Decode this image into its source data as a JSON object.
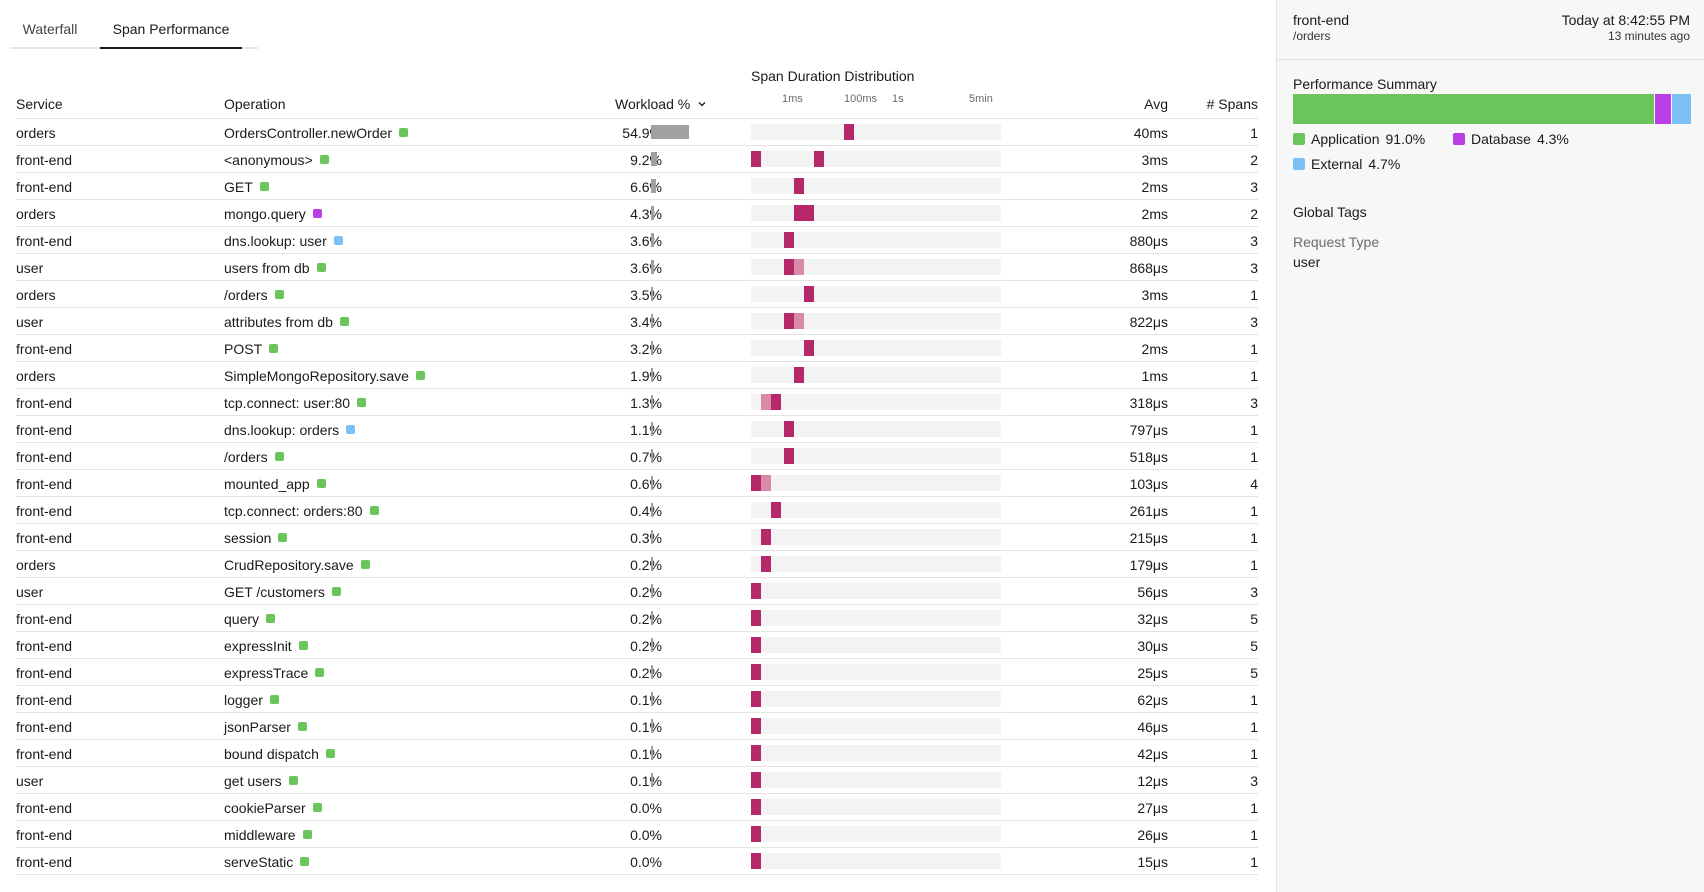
{
  "tabs": [
    {
      "label": "Waterfall",
      "active": false
    },
    {
      "label": "Span Performance",
      "active": true
    }
  ],
  "table": {
    "distribution_title": "Span Duration Distribution",
    "headers": {
      "service": "Service",
      "operation": "Operation",
      "workload": "Workload %",
      "avg": "Avg",
      "spans": "# Spans"
    },
    "sort_icon": "chevron-down-icon",
    "axis_ticks": [
      "1ms",
      "100ms",
      "1s",
      "5min"
    ],
    "rows": [
      {
        "service": "orders",
        "operation": "OrdersController.newOrder",
        "category": "application",
        "workload": "54.9%",
        "workload_value": 54.9,
        "avg": "40ms",
        "spans": "1",
        "dist": [
          [
            0.37,
            0.04,
            "dark"
          ]
        ]
      },
      {
        "service": "front-end",
        "operation": "<anonymous>",
        "category": "application",
        "workload": "9.2%",
        "workload_value": 9.2,
        "avg": "3ms",
        "spans": "2",
        "dist": [
          [
            0.0,
            0.04,
            "dark"
          ],
          [
            0.25,
            0.04,
            "dark"
          ]
        ]
      },
      {
        "service": "front-end",
        "operation": "GET",
        "category": "application",
        "workload": "6.6%",
        "workload_value": 6.6,
        "avg": "2ms",
        "spans": "3",
        "dist": [
          [
            0.17,
            0.04,
            "dark"
          ]
        ]
      },
      {
        "service": "orders",
        "operation": "mongo.query",
        "category": "database",
        "workload": "4.3%",
        "workload_value": 4.3,
        "avg": "2ms",
        "spans": "2",
        "dist": [
          [
            0.17,
            0.08,
            "dark"
          ]
        ]
      },
      {
        "service": "front-end",
        "operation": "dns.lookup: user",
        "category": "external",
        "workload": "3.6%",
        "workload_value": 3.6,
        "avg": "880μs",
        "spans": "3",
        "dist": [
          [
            0.13,
            0.04,
            "dark"
          ]
        ]
      },
      {
        "service": "user",
        "operation": "users from db",
        "category": "application",
        "workload": "3.6%",
        "workload_value": 3.6,
        "avg": "868μs",
        "spans": "3",
        "dist": [
          [
            0.13,
            0.04,
            "dark"
          ],
          [
            0.17,
            0.04,
            "light"
          ]
        ]
      },
      {
        "service": "orders",
        "operation": "/orders",
        "category": "application",
        "workload": "3.5%",
        "workload_value": 3.5,
        "avg": "3ms",
        "spans": "1",
        "dist": [
          [
            0.21,
            0.04,
            "dark"
          ]
        ]
      },
      {
        "service": "user",
        "operation": "attributes from db",
        "category": "application",
        "workload": "3.4%",
        "workload_value": 3.4,
        "avg": "822μs",
        "spans": "3",
        "dist": [
          [
            0.13,
            0.04,
            "dark"
          ],
          [
            0.17,
            0.04,
            "light"
          ]
        ]
      },
      {
        "service": "front-end",
        "operation": "POST",
        "category": "application",
        "workload": "3.2%",
        "workload_value": 3.2,
        "avg": "2ms",
        "spans": "1",
        "dist": [
          [
            0.21,
            0.04,
            "dark"
          ]
        ]
      },
      {
        "service": "orders",
        "operation": "SimpleMongoRepository.save",
        "category": "application",
        "workload": "1.9%",
        "workload_value": 1.9,
        "avg": "1ms",
        "spans": "1",
        "dist": [
          [
            0.17,
            0.04,
            "dark"
          ]
        ]
      },
      {
        "service": "front-end",
        "operation": "tcp.connect: user:80",
        "category": "application",
        "workload": "1.3%",
        "workload_value": 1.3,
        "avg": "318μs",
        "spans": "3",
        "dist": [
          [
            0.04,
            0.04,
            "light"
          ],
          [
            0.08,
            0.04,
            "dark"
          ]
        ]
      },
      {
        "service": "front-end",
        "operation": "dns.lookup: orders",
        "category": "external",
        "workload": "1.1%",
        "workload_value": 1.1,
        "avg": "797μs",
        "spans": "1",
        "dist": [
          [
            0.13,
            0.04,
            "dark"
          ]
        ]
      },
      {
        "service": "front-end",
        "operation": "/orders",
        "category": "application",
        "workload": "0.7%",
        "workload_value": 0.7,
        "avg": "518μs",
        "spans": "1",
        "dist": [
          [
            0.13,
            0.04,
            "dark"
          ]
        ]
      },
      {
        "service": "front-end",
        "operation": "mounted_app",
        "category": "application",
        "workload": "0.6%",
        "workload_value": 0.6,
        "avg": "103μs",
        "spans": "4",
        "dist": [
          [
            0.0,
            0.04,
            "dark"
          ],
          [
            0.04,
            0.04,
            "light"
          ]
        ]
      },
      {
        "service": "front-end",
        "operation": "tcp.connect: orders:80",
        "category": "application",
        "workload": "0.4%",
        "workload_value": 0.4,
        "avg": "261μs",
        "spans": "1",
        "dist": [
          [
            0.08,
            0.04,
            "dark"
          ]
        ]
      },
      {
        "service": "front-end",
        "operation": "session",
        "category": "application",
        "workload": "0.3%",
        "workload_value": 0.3,
        "avg": "215μs",
        "spans": "1",
        "dist": [
          [
            0.04,
            0.04,
            "dark"
          ]
        ]
      },
      {
        "service": "orders",
        "operation": "CrudRepository.save",
        "category": "application",
        "workload": "0.2%",
        "workload_value": 0.2,
        "avg": "179μs",
        "spans": "1",
        "dist": [
          [
            0.04,
            0.04,
            "dark"
          ]
        ]
      },
      {
        "service": "user",
        "operation": "GET /customers",
        "category": "application",
        "workload": "0.2%",
        "workload_value": 0.2,
        "avg": "56μs",
        "spans": "3",
        "dist": [
          [
            0.0,
            0.04,
            "dark"
          ]
        ]
      },
      {
        "service": "front-end",
        "operation": "query",
        "category": "application",
        "workload": "0.2%",
        "workload_value": 0.2,
        "avg": "32μs",
        "spans": "5",
        "dist": [
          [
            0.0,
            0.04,
            "dark"
          ]
        ]
      },
      {
        "service": "front-end",
        "operation": "expressInit",
        "category": "application",
        "workload": "0.2%",
        "workload_value": 0.2,
        "avg": "30μs",
        "spans": "5",
        "dist": [
          [
            0.0,
            0.04,
            "dark"
          ]
        ]
      },
      {
        "service": "front-end",
        "operation": "expressTrace",
        "category": "application",
        "workload": "0.2%",
        "workload_value": 0.2,
        "avg": "25μs",
        "spans": "5",
        "dist": [
          [
            0.0,
            0.04,
            "dark"
          ]
        ]
      },
      {
        "service": "front-end",
        "operation": "logger",
        "category": "application",
        "workload": "0.1%",
        "workload_value": 0.1,
        "avg": "62μs",
        "spans": "1",
        "dist": [
          [
            0.0,
            0.04,
            "dark"
          ]
        ]
      },
      {
        "service": "front-end",
        "operation": "jsonParser",
        "category": "application",
        "workload": "0.1%",
        "workload_value": 0.1,
        "avg": "46μs",
        "spans": "1",
        "dist": [
          [
            0.0,
            0.04,
            "dark"
          ]
        ]
      },
      {
        "service": "front-end",
        "operation": "bound dispatch",
        "category": "application",
        "workload": "0.1%",
        "workload_value": 0.1,
        "avg": "42μs",
        "spans": "1",
        "dist": [
          [
            0.0,
            0.04,
            "dark"
          ]
        ]
      },
      {
        "service": "user",
        "operation": "get users",
        "category": "application",
        "workload": "0.1%",
        "workload_value": 0.1,
        "avg": "12μs",
        "spans": "3",
        "dist": [
          [
            0.0,
            0.04,
            "dark"
          ]
        ]
      },
      {
        "service": "front-end",
        "operation": "cookieParser",
        "category": "application",
        "workload": "0.0%",
        "workload_value": 0.0,
        "avg": "27μs",
        "spans": "1",
        "dist": [
          [
            0.0,
            0.04,
            "dark"
          ]
        ]
      },
      {
        "service": "front-end",
        "operation": "middleware",
        "category": "application",
        "workload": "0.0%",
        "workload_value": 0.0,
        "avg": "26μs",
        "spans": "1",
        "dist": [
          [
            0.0,
            0.04,
            "dark"
          ]
        ]
      },
      {
        "service": "front-end",
        "operation": "serveStatic",
        "category": "application",
        "workload": "0.0%",
        "workload_value": 0.0,
        "avg": "15μs",
        "spans": "1",
        "dist": [
          [
            0.0,
            0.04,
            "dark"
          ]
        ]
      }
    ]
  },
  "side_panel": {
    "service": "front-end",
    "timestamp": "Today at 8:42:55 PM",
    "path": "/orders",
    "relative_time": "13 minutes ago",
    "performance_summary_title": "Performance Summary",
    "summary": [
      {
        "label": "Application",
        "percent": "91.0%",
        "value": 91.0,
        "color": "#6cc45c"
      },
      {
        "label": "Database",
        "percent": "4.3%",
        "value": 4.3,
        "color": "#b93ee6"
      },
      {
        "label": "External",
        "percent": "4.7%",
        "value": 4.7,
        "color": "#7cc1f5"
      }
    ],
    "global_tags_title": "Global Tags",
    "tags": [
      {
        "name": "Request Type",
        "value": "user"
      }
    ]
  },
  "colors": {
    "application": "#6cc45c",
    "database": "#b93ee6",
    "external": "#7cc1f5",
    "dist_dark": "#b5286a",
    "dist_light": "#d98aa8",
    "workload_bar": "#a0a0a0"
  }
}
